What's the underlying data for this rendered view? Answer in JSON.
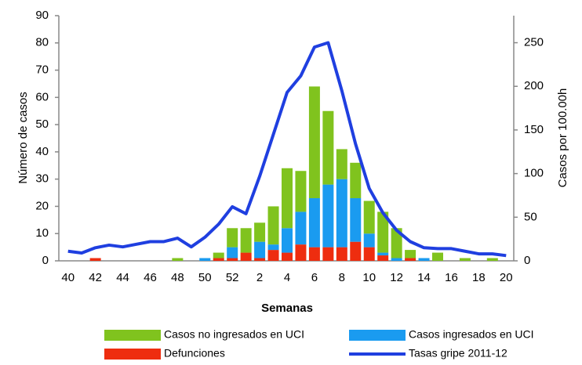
{
  "chart_data": {
    "type": "bar",
    "stacked": true,
    "x_label": "Semanas",
    "y_label": "Número de casos",
    "y2_label": "Casos por 100.00h",
    "categories": [
      "40",
      null,
      "42",
      null,
      "44",
      null,
      "46",
      null,
      "48",
      null,
      "50",
      null,
      "52",
      null,
      "2",
      null,
      "4",
      null,
      "6",
      null,
      "8",
      null,
      "10",
      null,
      "12",
      null,
      "14",
      null,
      "16",
      null,
      "18",
      null,
      "20"
    ],
    "ylim": [
      0,
      90
    ],
    "yticks": [
      0,
      10,
      20,
      30,
      40,
      50,
      60,
      70,
      80,
      90
    ],
    "y2lim": [
      0,
      281
    ],
    "y2ticks": [
      0,
      50,
      100,
      150,
      200,
      250
    ],
    "series": [
      {
        "name": "Casos no ingresados en UCI",
        "color": "#80c31e",
        "values": [
          0,
          0,
          0,
          0,
          0,
          0,
          0,
          0,
          1,
          0,
          0,
          2,
          7,
          9,
          7,
          14,
          22,
          15,
          41,
          27,
          11,
          13,
          12,
          15,
          11,
          3,
          0,
          3,
          0,
          1,
          0,
          1,
          0
        ]
      },
      {
        "name": "Casos ingresados en UCI",
        "color": "#1a9bf0",
        "values": [
          0,
          0,
          0,
          0,
          0,
          0,
          0,
          0,
          0,
          0,
          1,
          0,
          4,
          0,
          6,
          2,
          9,
          12,
          18,
          23,
          25,
          16,
          5,
          1,
          1,
          0,
          1,
          0,
          0,
          0,
          0,
          0,
          0
        ]
      },
      {
        "name": "Defunciones",
        "color": "#ee2d0f",
        "values": [
          0,
          0,
          1,
          0,
          0,
          0,
          0,
          0,
          0,
          0,
          0,
          1,
          1,
          3,
          1,
          4,
          3,
          6,
          5,
          5,
          5,
          7,
          5,
          2,
          0,
          1,
          0,
          0,
          0,
          0,
          0,
          0,
          0
        ]
      },
      {
        "name": "Tasas gripe 2011-12",
        "color": "#1f3fe0",
        "type": "line",
        "axis": "y2",
        "values": [
          11,
          9,
          15,
          18,
          16,
          19,
          22,
          22,
          26,
          16,
          27,
          42,
          62,
          54,
          97,
          145,
          193,
          212,
          245,
          250,
          195,
          134,
          83,
          55,
          35,
          22,
          15,
          14,
          14,
          11,
          8,
          8,
          6
        ]
      }
    ]
  }
}
